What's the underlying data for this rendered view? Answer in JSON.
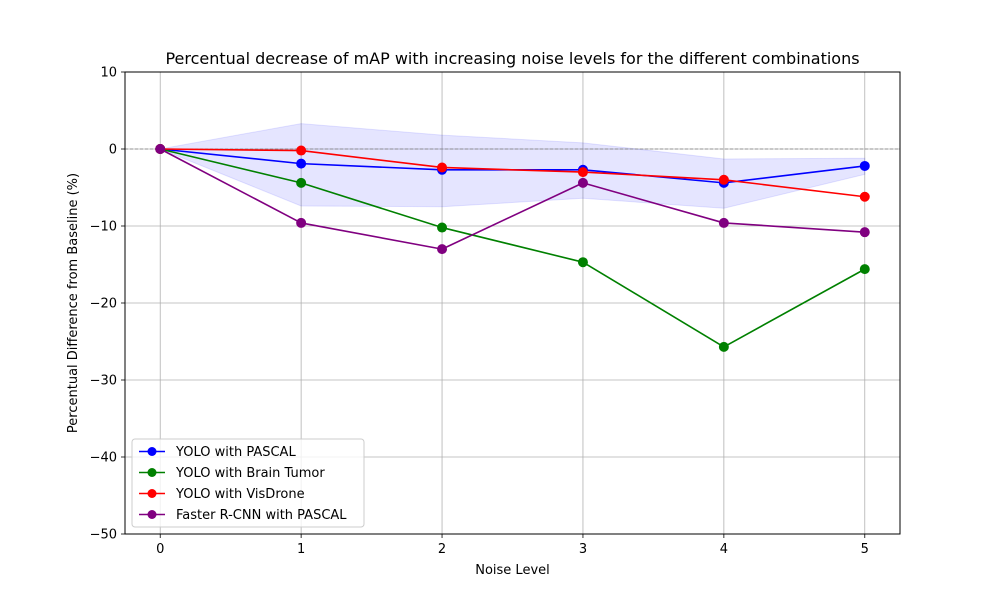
{
  "chart_data": {
    "type": "line",
    "title": "Percentual decrease of mAP with increasing noise levels for the different combinations",
    "xlabel": "Noise Level",
    "ylabel": "Percentual Difference from Baseline (%)",
    "x": [
      0,
      1,
      2,
      3,
      4,
      5
    ],
    "xlim": [
      -0.25,
      5.25
    ],
    "ylim": [
      -50,
      10
    ],
    "xticks": [
      "0",
      "1",
      "2",
      "3",
      "4",
      "5"
    ],
    "yticks": [
      10,
      0,
      -10,
      -20,
      -30,
      -40,
      -50
    ],
    "ytick_labels": [
      "10",
      "0",
      "−10",
      "−20",
      "−30",
      "−40",
      "−50"
    ],
    "grid": true,
    "reference_line": {
      "y": 0,
      "style": "dashed",
      "color": "#808080"
    },
    "shaded_band": {
      "color": "#0000ff",
      "opacity": 0.1,
      "upper": [
        0,
        3.3,
        1.8,
        0.8,
        -1.3,
        -1.2
      ],
      "lower": [
        0,
        -7.4,
        -7.5,
        -6.4,
        -7.7,
        -3.3
      ]
    },
    "legend_position": "lower-left",
    "series": [
      {
        "name": "YOLO with PASCAL",
        "color": "#0000ff",
        "values": [
          0,
          -1.9,
          -2.7,
          -2.7,
          -4.4,
          -2.2
        ]
      },
      {
        "name": "YOLO with Brain Tumor",
        "color": "#008000",
        "values": [
          0,
          -4.4,
          -10.2,
          -14.7,
          -25.7,
          -15.6
        ]
      },
      {
        "name": "YOLO with VisDrone",
        "color": "#ff0000",
        "values": [
          0,
          -0.2,
          -2.4,
          -3.0,
          -4.0,
          -6.2
        ]
      },
      {
        "name": "Faster R-CNN with PASCAL",
        "color": "#800080",
        "values": [
          0,
          -9.6,
          -13.0,
          -4.4,
          -9.6,
          -10.8
        ]
      }
    ]
  }
}
